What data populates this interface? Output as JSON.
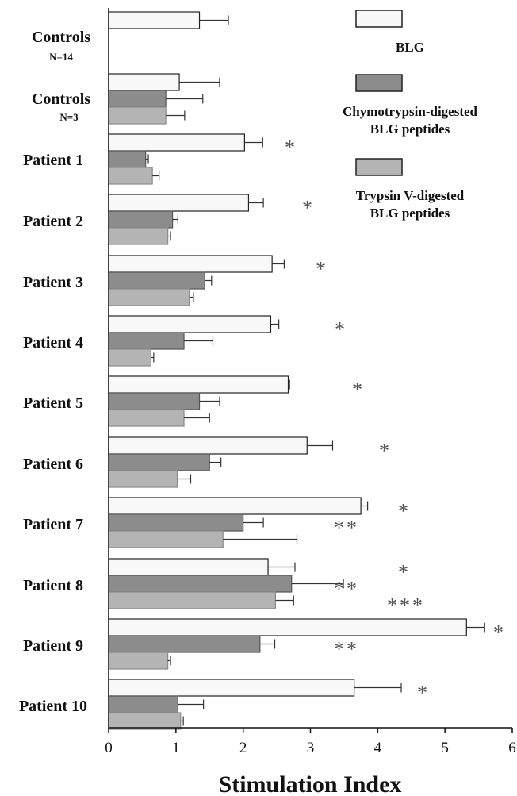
{
  "chart_data": {
    "type": "bar",
    "orientation": "horizontal",
    "xlabel": "Stimulation Index",
    "xlim": [
      0,
      6
    ],
    "xticks": [
      0,
      1,
      2,
      3,
      4,
      5,
      6
    ],
    "legend_position": "top-right",
    "series": [
      {
        "name": "BLG",
        "color": "#f8f8f8"
      },
      {
        "name": "Chymotrypsin-digested BLG peptides",
        "legend_lines": [
          "Chymotrypsin-digested",
          "BLG peptides"
        ],
        "color": "#8c8c8c"
      },
      {
        "name": "Trypsin V-digested BLG peptides",
        "legend_lines": [
          "Trypsin V-digested",
          "BLG peptides"
        ],
        "color": "#b4b4b4"
      }
    ],
    "groups": [
      {
        "label": "Controls",
        "sublabel": "N=14",
        "values": [
          1.35
        ],
        "errors": [
          0.43
        ],
        "significance": [
          ""
        ]
      },
      {
        "label": "Controls",
        "sublabel": "N=3",
        "values": [
          1.05,
          0.85,
          0.85
        ],
        "errors": [
          0.6,
          0.55,
          0.28
        ],
        "significance": [
          "",
          "",
          ""
        ]
      },
      {
        "label": "Patient 1",
        "sublabel": "",
        "values": [
          2.02,
          0.55,
          0.65
        ],
        "errors": [
          0.27,
          0.04,
          0.1
        ],
        "significance": [
          "*",
          "",
          ""
        ]
      },
      {
        "label": "Patient 2",
        "sublabel": "",
        "values": [
          2.08,
          0.95,
          0.88
        ],
        "errors": [
          0.22,
          0.08,
          0.04
        ],
        "significance": [
          "*",
          "",
          ""
        ]
      },
      {
        "label": "Patient 3",
        "sublabel": "",
        "values": [
          2.43,
          1.43,
          1.2
        ],
        "errors": [
          0.18,
          0.1,
          0.06
        ],
        "significance": [
          "*",
          "",
          ""
        ]
      },
      {
        "label": "Patient 4",
        "sublabel": "",
        "values": [
          2.41,
          1.12,
          0.63
        ],
        "errors": [
          0.12,
          0.43,
          0.04
        ],
        "significance": [
          "*",
          "",
          ""
        ]
      },
      {
        "label": "Patient 5",
        "sublabel": "",
        "values": [
          2.67,
          1.35,
          1.12
        ],
        "errors": [
          0.02,
          0.3,
          0.38
        ],
        "significance": [
          "*",
          "",
          ""
        ]
      },
      {
        "label": "Patient 6",
        "sublabel": "",
        "values": [
          2.95,
          1.5,
          1.02
        ],
        "errors": [
          0.38,
          0.17,
          0.2
        ],
        "significance": [
          "*",
          "",
          ""
        ]
      },
      {
        "label": "Patient 7",
        "sublabel": "",
        "values": [
          3.75,
          2.0,
          1.7
        ],
        "errors": [
          0.1,
          0.3,
          1.1
        ],
        "significance": [
          "*",
          "**",
          ""
        ]
      },
      {
        "label": "Patient 8",
        "sublabel": "",
        "values": [
          2.37,
          2.72,
          2.48
        ],
        "errors": [
          0.4,
          0.77,
          0.27
        ],
        "significance": [
          "*",
          "**",
          "***"
        ]
      },
      {
        "label": "Patient 9",
        "sublabel": "",
        "values": [
          5.32,
          2.25,
          0.88
        ],
        "errors": [
          0.27,
          0.22,
          0.04
        ],
        "significance": [
          "*",
          "**",
          ""
        ]
      },
      {
        "label": "Patient 10",
        "sublabel": "",
        "values": [
          3.65,
          1.03,
          1.07
        ],
        "errors": [
          0.7,
          0.38,
          0.04
        ],
        "significance": [
          "*",
          "",
          ""
        ]
      }
    ]
  }
}
